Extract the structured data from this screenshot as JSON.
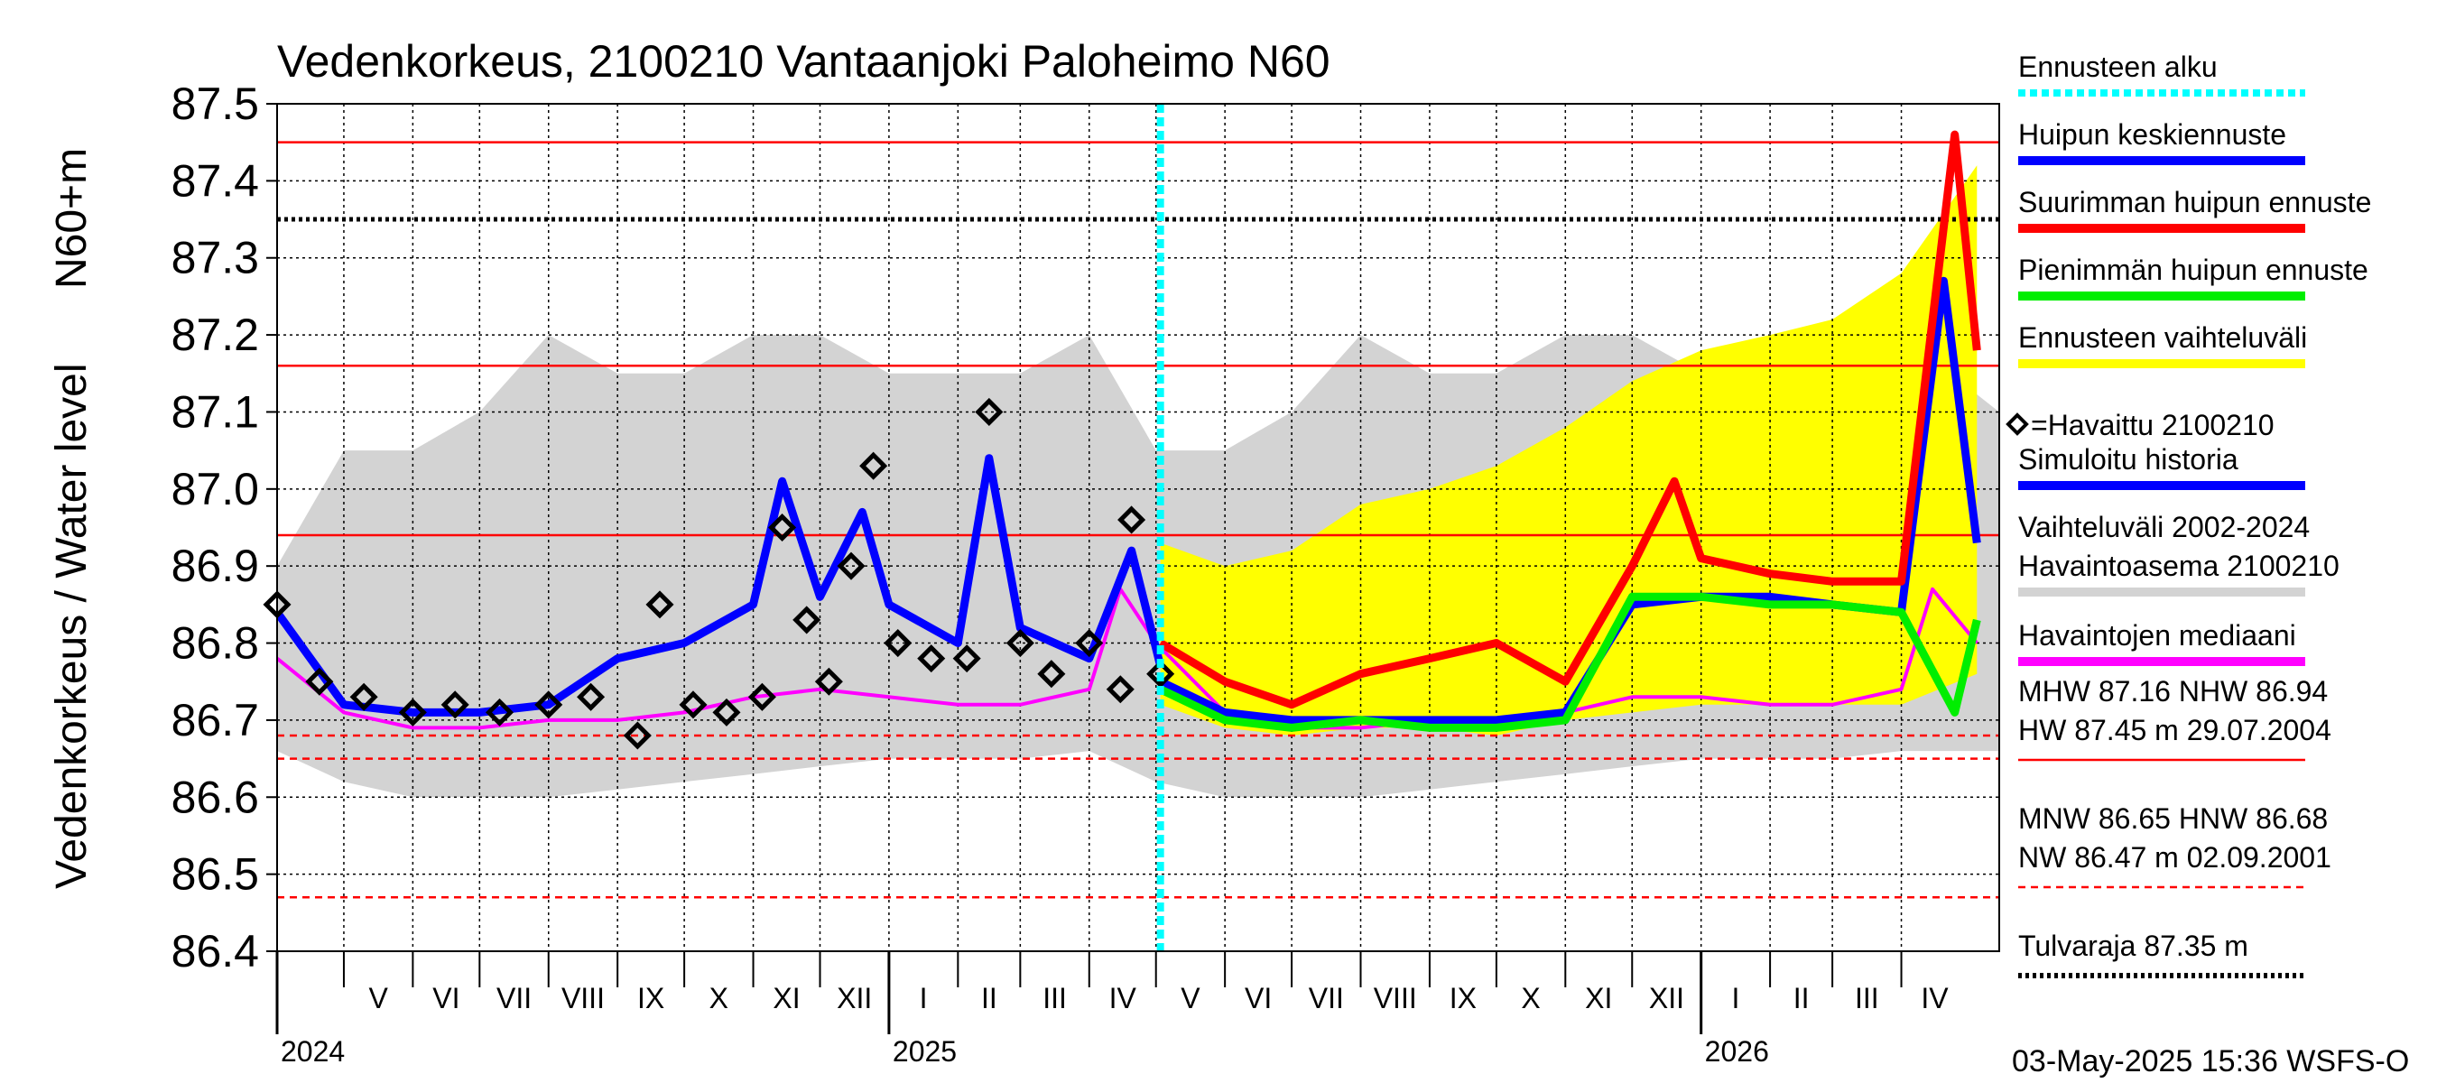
{
  "chart_data": {
    "type": "line",
    "title": "Vedenkorkeus, 2100210 Vantaanjoki Paloheimo N60",
    "ylabel": "Vedenkorkeus / Water level",
    "yunit": "N60+m",
    "ylim": [
      86.4,
      87.5
    ],
    "yticks": [
      "87.5",
      "87.4",
      "87.3",
      "87.2",
      "87.1",
      "87.0",
      "86.9",
      "86.8",
      "86.7",
      "86.6",
      "86.5",
      "86.4"
    ],
    "x_start": "2024-04-01",
    "x_end": "2026-05-15",
    "forecast_start": "2025-05-03",
    "months": [
      "V",
      "VI",
      "VII",
      "VIII",
      "IX",
      "X",
      "XI",
      "XII",
      "I",
      "II",
      "III",
      "IV",
      "V",
      "VI",
      "VII",
      "VIII",
      "IX",
      "X",
      "XI",
      "XII",
      "I",
      "II",
      "III",
      "IV"
    ],
    "month_starts": [
      "2024-05-01",
      "2024-06-01",
      "2024-07-01",
      "2024-08-01",
      "2024-09-01",
      "2024-10-01",
      "2024-11-01",
      "2024-12-01",
      "2025-01-01",
      "2025-02-01",
      "2025-03-01",
      "2025-04-01",
      "2025-05-01",
      "2025-06-01",
      "2025-07-01",
      "2025-08-01",
      "2025-09-01",
      "2025-10-01",
      "2025-11-01",
      "2025-12-01",
      "2026-01-01",
      "2026-02-01",
      "2026-03-01",
      "2026-04-01"
    ],
    "years": [
      "2024",
      "2025",
      "2026"
    ],
    "year_starts": [
      "2024-04-01",
      "2025-01-01",
      "2026-01-01"
    ],
    "reference_lines": [
      {
        "name": "HW",
        "value": 87.45,
        "color": "#ff0000",
        "style": "solid"
      },
      {
        "name": "MHW",
        "value": 87.16,
        "color": "#ff0000",
        "style": "solid"
      },
      {
        "name": "NHW",
        "value": 86.94,
        "color": "#ff0000",
        "style": "solid"
      },
      {
        "name": "Tulvaraja",
        "value": 87.35,
        "color": "#000000",
        "style": "dotted"
      },
      {
        "name": "HNW",
        "value": 86.68,
        "color": "#ff0000",
        "style": "dashed"
      },
      {
        "name": "MNW",
        "value": 86.65,
        "color": "#ff0000",
        "style": "dashed"
      },
      {
        "name": "NW",
        "value": 86.47,
        "color": "#ff0000",
        "style": "dashed"
      }
    ],
    "series": [
      {
        "name": "Ennusteen vaihteluväli",
        "type": "band",
        "color": "#ffff00",
        "x": [
          "2025-05-03",
          "2025-06-01",
          "2025-07-01",
          "2025-08-01",
          "2025-09-01",
          "2025-10-01",
          "2025-11-01",
          "2025-12-01",
          "2026-01-01",
          "2026-02-01",
          "2026-03-01",
          "2026-04-01",
          "2026-05-05"
        ],
        "low": [
          86.72,
          86.69,
          86.68,
          86.69,
          86.69,
          86.68,
          86.7,
          86.71,
          86.72,
          86.72,
          86.72,
          86.72,
          86.76
        ],
        "high": [
          86.93,
          86.9,
          86.92,
          86.98,
          87.0,
          87.03,
          87.08,
          87.14,
          87.18,
          87.2,
          87.22,
          87.28,
          87.42
        ]
      },
      {
        "name": "Vaihteluväli 2002-2024 Havaintoasema 2100210",
        "type": "band",
        "color": "#d3d3d3",
        "x": [
          "2024-04-01",
          "2024-05-01",
          "2024-06-01",
          "2024-07-01",
          "2024-08-01",
          "2024-09-01",
          "2024-10-01",
          "2024-11-01",
          "2024-12-01",
          "2025-01-01",
          "2025-02-01",
          "2025-03-01",
          "2025-04-01",
          "2025-05-01",
          "2025-06-01",
          "2025-07-01",
          "2025-08-01",
          "2025-09-01",
          "2025-10-01",
          "2025-11-01",
          "2025-12-01",
          "2026-01-01",
          "2026-02-01",
          "2026-03-01",
          "2026-04-01",
          "2026-05-15"
        ],
        "low": [
          86.66,
          86.62,
          86.6,
          86.6,
          86.6,
          86.61,
          86.62,
          86.63,
          86.64,
          86.65,
          86.65,
          86.65,
          86.66,
          86.62,
          86.6,
          86.6,
          86.6,
          86.61,
          86.62,
          86.63,
          86.64,
          86.65,
          86.65,
          86.65,
          86.66,
          86.66
        ],
        "high": [
          86.9,
          87.05,
          87.05,
          87.1,
          87.2,
          87.15,
          87.15,
          87.2,
          87.2,
          87.15,
          87.15,
          87.15,
          87.2,
          87.05,
          87.05,
          87.1,
          87.2,
          87.15,
          87.15,
          87.2,
          87.2,
          87.15,
          87.15,
          87.15,
          87.2,
          87.1
        ]
      },
      {
        "name": "Havaintojen mediaani",
        "color": "#ff00ff",
        "x": [
          "2024-04-01",
          "2024-05-01",
          "2024-06-01",
          "2024-07-01",
          "2024-08-01",
          "2024-09-01",
          "2024-10-01",
          "2024-11-01",
          "2024-12-01",
          "2025-01-01",
          "2025-02-01",
          "2025-03-01",
          "2025-04-01",
          "2025-04-15",
          "2025-05-01",
          "2025-06-01",
          "2025-07-01",
          "2025-08-01",
          "2025-09-01",
          "2025-10-01",
          "2025-11-01",
          "2025-12-01",
          "2026-01-01",
          "2026-02-01",
          "2026-03-01",
          "2026-04-01",
          "2026-04-15",
          "2026-05-05"
        ],
        "y": [
          86.78,
          86.71,
          86.69,
          86.69,
          86.7,
          86.7,
          86.71,
          86.73,
          86.74,
          86.73,
          86.72,
          86.72,
          86.74,
          86.87,
          86.8,
          86.71,
          86.69,
          86.69,
          86.7,
          86.7,
          86.71,
          86.73,
          86.73,
          86.72,
          86.72,
          86.74,
          86.87,
          86.8
        ]
      },
      {
        "name": "Simuloitu historia",
        "color": "#0000ff",
        "x": [
          "2024-04-01",
          "2024-05-01",
          "2024-06-01",
          "2024-07-01",
          "2024-08-01",
          "2024-09-01",
          "2024-10-01",
          "2024-11-01",
          "2024-11-14",
          "2024-12-01",
          "2024-12-20",
          "2025-01-01",
          "2025-02-01",
          "2025-02-15",
          "2025-03-01",
          "2025-04-01",
          "2025-04-20",
          "2025-05-03"
        ],
        "y": [
          86.84,
          86.72,
          86.71,
          86.71,
          86.72,
          86.78,
          86.8,
          86.85,
          87.01,
          86.86,
          86.97,
          86.85,
          86.8,
          87.04,
          86.82,
          86.78,
          86.92,
          86.77
        ]
      },
      {
        "name": "Huipun keskiennuste",
        "color": "#0000ff",
        "x": [
          "2025-05-03",
          "2025-06-01",
          "2025-07-01",
          "2025-08-01",
          "2025-09-01",
          "2025-10-01",
          "2025-11-01",
          "2025-12-01",
          "2026-01-01",
          "2026-02-01",
          "2026-03-01",
          "2026-04-01",
          "2026-04-20",
          "2026-05-05"
        ],
        "y": [
          86.75,
          86.71,
          86.7,
          86.7,
          86.7,
          86.7,
          86.71,
          86.85,
          86.86,
          86.86,
          86.85,
          86.84,
          87.27,
          86.93
        ]
      },
      {
        "name": "Suurimman huipun ennuste",
        "color": "#ff0000",
        "x": [
          "2025-05-03",
          "2025-06-01",
          "2025-07-01",
          "2025-08-01",
          "2025-09-01",
          "2025-10-01",
          "2025-11-01",
          "2025-12-01",
          "2025-12-20",
          "2026-01-01",
          "2026-02-01",
          "2026-03-01",
          "2026-04-01",
          "2026-04-25",
          "2026-05-05"
        ],
        "y": [
          86.8,
          86.75,
          86.72,
          86.76,
          86.78,
          86.8,
          86.75,
          86.9,
          87.01,
          86.91,
          86.89,
          86.88,
          86.88,
          87.46,
          87.18
        ]
      },
      {
        "name": "Pienimmän huipun ennuste",
        "color": "#00ee00",
        "x": [
          "2025-05-03",
          "2025-06-01",
          "2025-07-01",
          "2025-08-01",
          "2025-09-01",
          "2025-10-01",
          "2025-11-01",
          "2025-12-01",
          "2026-01-01",
          "2026-02-01",
          "2026-03-01",
          "2026-04-01",
          "2026-04-25",
          "2026-05-05"
        ],
        "y": [
          86.74,
          86.7,
          86.69,
          86.7,
          86.69,
          86.69,
          86.7,
          86.86,
          86.86,
          86.85,
          86.85,
          86.84,
          86.71,
          86.83
        ]
      },
      {
        "name": "Havaittu 2100210",
        "type": "scatter",
        "color": "#000000",
        "x": [
          "2024-04-01",
          "2024-04-20",
          "2024-05-10",
          "2024-06-01",
          "2024-06-20",
          "2024-07-10",
          "2024-08-01",
          "2024-08-20",
          "2024-09-10",
          "2024-09-20",
          "2024-10-05",
          "2024-10-20",
          "2024-11-05",
          "2024-11-14",
          "2024-11-25",
          "2024-12-05",
          "2024-12-15",
          "2024-12-25",
          "2025-01-05",
          "2025-01-20",
          "2025-02-05",
          "2025-02-15",
          "2025-03-01",
          "2025-03-15",
          "2025-04-01",
          "2025-04-15",
          "2025-04-20",
          "2025-05-03"
        ],
        "y": [
          86.85,
          86.75,
          86.73,
          86.71,
          86.72,
          86.71,
          86.72,
          86.73,
          86.68,
          86.85,
          86.72,
          86.71,
          86.73,
          86.95,
          86.83,
          86.75,
          86.9,
          87.03,
          86.8,
          86.78,
          86.78,
          87.1,
          86.8,
          86.76,
          86.8,
          86.74,
          86.96,
          86.76
        ]
      }
    ],
    "legend": {
      "position": "right",
      "entries": [
        {
          "label": "Ennusteen alku",
          "color": "#00ffff",
          "style": "dotted"
        },
        {
          "label": "Huipun keskiennuste",
          "color": "#0000ff",
          "style": "solid"
        },
        {
          "label": "Suurimman huipun ennuste",
          "color": "#ff0000",
          "style": "solid"
        },
        {
          "label": "Pienimmän huipun ennuste",
          "color": "#00ee00",
          "style": "solid"
        },
        {
          "label": "Ennusteen vaihteluväli",
          "color": "#ffff00",
          "style": "solid"
        },
        {
          "label": "=Havaittu 2100210",
          "color": "#000000",
          "style": "marker"
        },
        {
          "label": "Simuloitu historia",
          "color": "#0000ff",
          "style": "solid"
        },
        {
          "label": "Vaihteluväli 2002-2024",
          "label2": " Havaintoasema 2100210",
          "color": "#d3d3d3",
          "style": "solid"
        },
        {
          "label": "Havaintojen mediaani",
          "color": "#ff00ff",
          "style": "solid"
        }
      ],
      "stats": [
        {
          "lines": [
            "MHW  87.16 NHW  86.94",
            "HW  87.45 m 29.07.2004"
          ],
          "color": "#ff0000",
          "style": "solid"
        },
        {
          "lines": [
            "MNW  86.65 HNW  86.68",
            "NW  86.47 m 02.09.2001"
          ],
          "color": "#ff0000",
          "style": "dashed"
        },
        {
          "lines": [
            "Tulvaraja 87.35 m"
          ],
          "color": "#000000",
          "style": "dotted"
        }
      ]
    },
    "grid": true,
    "footer": "03-May-2025 15:36 WSFS-O"
  }
}
